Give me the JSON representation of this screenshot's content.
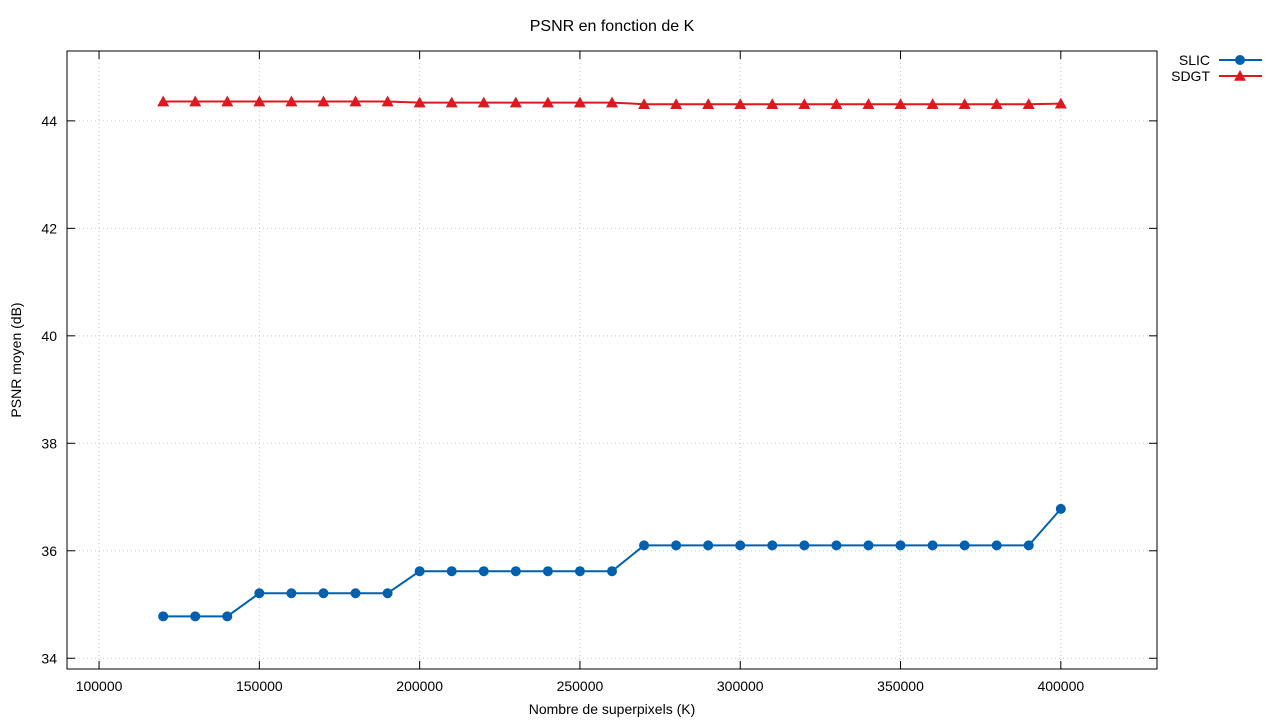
{
  "chart_data": {
    "type": "line",
    "title": "PSNR en fonction de K",
    "xlabel": "Nombre de superpixels (K)",
    "ylabel": "PSNR moyen (dB)",
    "xlim": [
      90000,
      430000
    ],
    "ylim": [
      33.8,
      45.3
    ],
    "xticks": [
      100000,
      150000,
      200000,
      250000,
      300000,
      350000,
      400000
    ],
    "yticks": [
      34,
      36,
      38,
      40,
      42,
      44
    ],
    "grid": true,
    "legend_position": "outside-top-right",
    "x": [
      120000,
      130000,
      140000,
      150000,
      160000,
      170000,
      180000,
      190000,
      200000,
      210000,
      220000,
      230000,
      240000,
      250000,
      260000,
      270000,
      280000,
      290000,
      300000,
      310000,
      320000,
      330000,
      340000,
      350000,
      360000,
      370000,
      380000,
      390000,
      400000
    ],
    "series": [
      {
        "name": "SLIC",
        "color": "#0060ad",
        "marker": "circle",
        "values": [
          34.78,
          34.78,
          34.78,
          35.21,
          35.21,
          35.21,
          35.21,
          35.21,
          35.62,
          35.62,
          35.62,
          35.62,
          35.62,
          35.62,
          35.62,
          36.1,
          36.1,
          36.1,
          36.1,
          36.1,
          36.1,
          36.1,
          36.1,
          36.1,
          36.1,
          36.1,
          36.1,
          36.1,
          36.78
        ]
      },
      {
        "name": "SDGT",
        "color": "#dd181f",
        "marker": "triangle",
        "values": [
          44.36,
          44.36,
          44.36,
          44.36,
          44.36,
          44.36,
          44.36,
          44.36,
          44.34,
          44.34,
          44.34,
          44.34,
          44.34,
          44.34,
          44.34,
          44.31,
          44.31,
          44.31,
          44.31,
          44.31,
          44.31,
          44.31,
          44.31,
          44.31,
          44.31,
          44.31,
          44.31,
          44.31,
          44.32
        ]
      }
    ]
  }
}
